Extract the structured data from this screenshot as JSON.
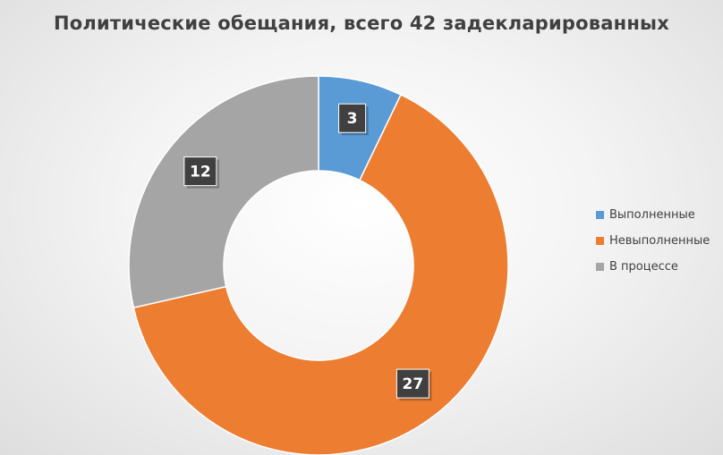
{
  "chart_data": {
    "type": "pie",
    "variant": "donut",
    "title": "Политические обещания, всего 42 задекларированных",
    "categories": [
      "Выполненные",
      "Невыполненные",
      "В процессе"
    ],
    "values": [
      3,
      27,
      12
    ],
    "colors": [
      "#5b9bd5",
      "#ed7d31",
      "#a5a5a5"
    ],
    "data_labels": [
      "3",
      "27",
      "12"
    ],
    "legend": "right"
  }
}
